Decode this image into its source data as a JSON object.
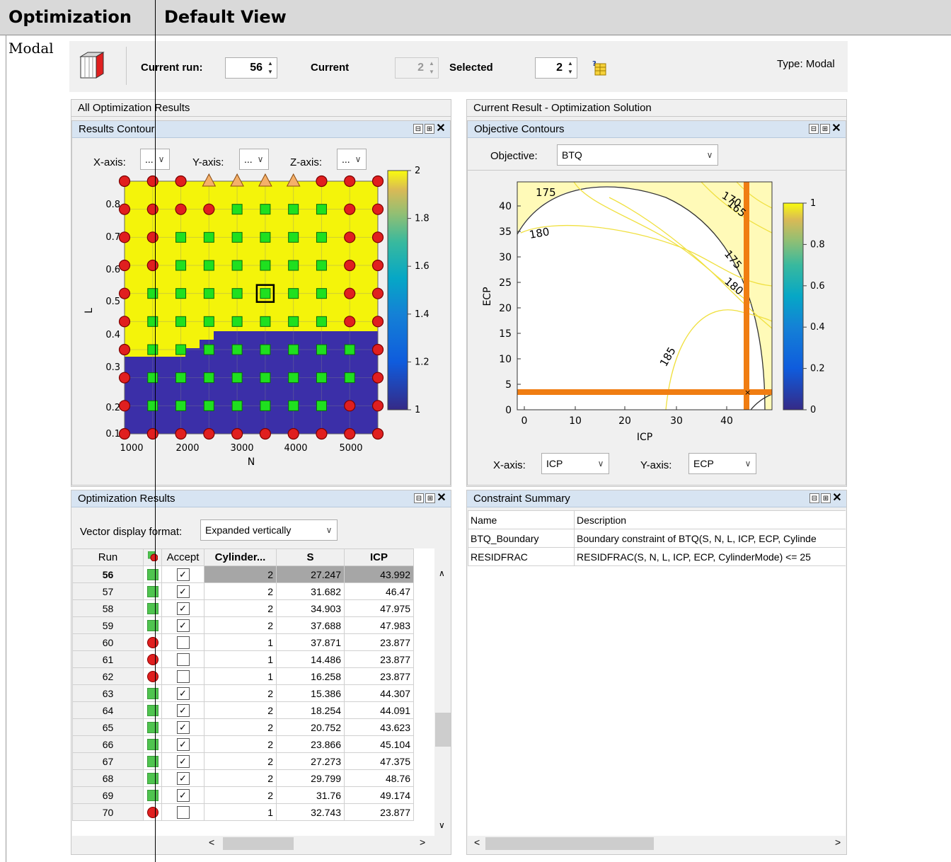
{
  "header": {
    "col1": "Optimization",
    "col2": "Default View"
  },
  "row_label": "Modal",
  "toolbar": {
    "current_run_label": "Current run:",
    "current_run_value": "56",
    "current_label": "Current",
    "current_value": "2",
    "selected_label": "Selected",
    "selected_value": "2",
    "type_label": "Type: Modal"
  },
  "left_group_title": "All Optimization Results",
  "right_group_title": "Current Result - Optimization Solution",
  "results_contour": {
    "title": "Results Contour",
    "x_axis_label": "X-axis:",
    "y_axis_label": "Y-axis:",
    "z_axis_label": "Z-axis:",
    "combo_value": "...",
    "xlabel": "N",
    "ylabel": "L",
    "x_ticks": [
      "1000",
      "2000",
      "3000",
      "4000",
      "5000"
    ],
    "y_ticks": [
      "0.1",
      "0.2",
      "0.3",
      "0.4",
      "0.5",
      "0.6",
      "0.7",
      "0.8"
    ],
    "colorbar_ticks": [
      "2",
      "1.8",
      "1.6",
      "1.4",
      "1.2",
      "1"
    ]
  },
  "objective_contours": {
    "title": "Objective Contours",
    "objective_label": "Objective:",
    "objective_value": "BTQ",
    "xlabel": "ICP",
    "ylabel": "ECP",
    "x_ticks": [
      "0",
      "10",
      "20",
      "30",
      "40"
    ],
    "y_ticks": [
      "0",
      "5",
      "10",
      "15",
      "20",
      "25",
      "30",
      "35",
      "40"
    ],
    "contour_labels": [
      "175",
      "170",
      "165",
      "180",
      "175",
      "180",
      "185"
    ],
    "colorbar_ticks": [
      "1",
      "0.8",
      "0.6",
      "0.4",
      "0.2",
      "0"
    ],
    "x_axis_label": "X-axis:",
    "x_axis_value": "ICP",
    "y_axis_label": "Y-axis:",
    "y_axis_value": "ECP"
  },
  "optimization_results": {
    "title": "Optimization Results",
    "vector_label": "Vector display format:",
    "vector_value": "Expanded vertically",
    "columns": [
      "Run",
      "Accept",
      "Cylinder...",
      "S",
      "ICP"
    ],
    "rows": [
      {
        "run": "56",
        "ok": true,
        "accept": true,
        "cyl": "2",
        "s": "27.247",
        "icp": "43.992"
      },
      {
        "run": "57",
        "ok": true,
        "accept": true,
        "cyl": "2",
        "s": "31.682",
        "icp": "46.47"
      },
      {
        "run": "58",
        "ok": true,
        "accept": true,
        "cyl": "2",
        "s": "34.903",
        "icp": "47.975"
      },
      {
        "run": "59",
        "ok": true,
        "accept": true,
        "cyl": "2",
        "s": "37.688",
        "icp": "47.983"
      },
      {
        "run": "60",
        "ok": false,
        "accept": false,
        "cyl": "1",
        "s": "37.871",
        "icp": "23.877"
      },
      {
        "run": "61",
        "ok": false,
        "accept": false,
        "cyl": "1",
        "s": "14.486",
        "icp": "23.877"
      },
      {
        "run": "62",
        "ok": false,
        "accept": false,
        "cyl": "1",
        "s": "16.258",
        "icp": "23.877"
      },
      {
        "run": "63",
        "ok": true,
        "accept": true,
        "cyl": "2",
        "s": "15.386",
        "icp": "44.307"
      },
      {
        "run": "64",
        "ok": true,
        "accept": true,
        "cyl": "2",
        "s": "18.254",
        "icp": "44.091"
      },
      {
        "run": "65",
        "ok": true,
        "accept": true,
        "cyl": "2",
        "s": "20.752",
        "icp": "43.623"
      },
      {
        "run": "66",
        "ok": true,
        "accept": true,
        "cyl": "2",
        "s": "23.866",
        "icp": "45.104"
      },
      {
        "run": "67",
        "ok": true,
        "accept": true,
        "cyl": "2",
        "s": "27.273",
        "icp": "47.375"
      },
      {
        "run": "68",
        "ok": true,
        "accept": true,
        "cyl": "2",
        "s": "29.799",
        "icp": "48.76"
      },
      {
        "run": "69",
        "ok": true,
        "accept": true,
        "cyl": "2",
        "s": "31.76",
        "icp": "49.174"
      },
      {
        "run": "70",
        "ok": false,
        "accept": false,
        "cyl": "1",
        "s": "32.743",
        "icp": "23.877"
      }
    ]
  },
  "constraint_summary": {
    "title": "Constraint Summary",
    "columns": [
      "Name",
      "Description"
    ],
    "rows": [
      {
        "name": "BTQ_Boundary",
        "desc": "Boundary constraint of BTQ(S, N, L, ICP, ECP, Cylinde"
      },
      {
        "name": "RESIDFRAC",
        "desc": "RESIDFRAC(S, N, L, ICP, ECP, CylinderMode) <= 25"
      }
    ]
  },
  "colors": {
    "yellow": "#f4f40a",
    "blue": "#3b2fa8",
    "green": "#1fe01f",
    "red": "#e01f1f",
    "orange": "#f07d12"
  }
}
